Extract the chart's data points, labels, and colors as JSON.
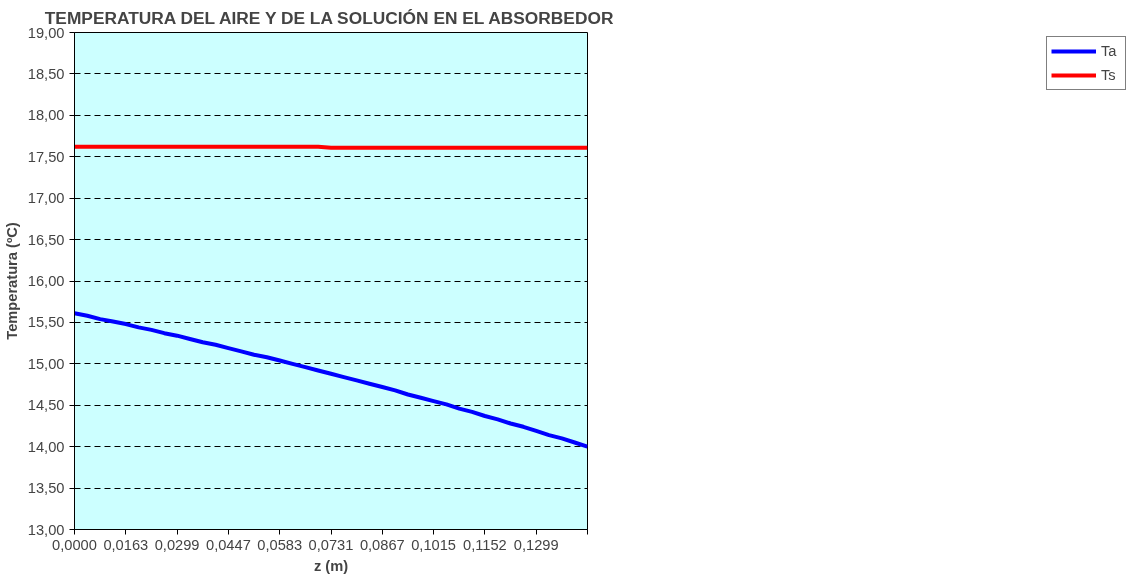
{
  "chart_data": {
    "type": "line",
    "title": "TEMPERATURA DEL AIRE Y DE LA SOLUCIÓN EN EL ABSORBEDOR",
    "xlabel": "z (m)",
    "ylabel": "Temperatura (ºC)",
    "categories": [
      "0,0000",
      null,
      null,
      null,
      "0,0163",
      null,
      null,
      null,
      "0,0299",
      null,
      null,
      null,
      "0,0447",
      null,
      null,
      null,
      "0,0583",
      null,
      null,
      null,
      "0,0731",
      null,
      null,
      null,
      "0,0867",
      null,
      null,
      null,
      "0,1015",
      null,
      null,
      null,
      "0,1152",
      null,
      null,
      null,
      "0,1299",
      null,
      null,
      null,
      null
    ],
    "series": [
      {
        "name": "Ta",
        "color": "#0000ff",
        "values": [
          15.61,
          15.58,
          15.54,
          15.51,
          15.48,
          15.44,
          15.41,
          15.37,
          15.34,
          15.3,
          15.26,
          15.23,
          15.19,
          15.15,
          15.11,
          15.08,
          15.04,
          15.0,
          14.96,
          14.92,
          14.88,
          14.84,
          14.8,
          14.76,
          14.72,
          14.68,
          14.63,
          14.59,
          14.55,
          14.51,
          14.46,
          14.42,
          14.37,
          14.33,
          14.28,
          14.24,
          14.19,
          14.14,
          14.1,
          14.05,
          14.0
        ]
      },
      {
        "name": "Ts",
        "color": "#ff0000",
        "values": [
          17.62,
          17.62,
          17.62,
          17.62,
          17.62,
          17.62,
          17.62,
          17.62,
          17.62,
          17.62,
          17.62,
          17.62,
          17.62,
          17.62,
          17.62,
          17.62,
          17.62,
          17.62,
          17.62,
          17.62,
          17.61,
          17.61,
          17.61,
          17.61,
          17.61,
          17.61,
          17.61,
          17.61,
          17.61,
          17.61,
          17.61,
          17.61,
          17.61,
          17.61,
          17.61,
          17.61,
          17.61,
          17.61,
          17.61,
          17.61,
          17.61
        ]
      }
    ],
    "ylim": [
      13,
      19
    ],
    "yticks": [
      {
        "value": 13,
        "label": "13,00"
      },
      {
        "value": 13.5,
        "label": "13,50"
      },
      {
        "value": 14,
        "label": "14,00"
      },
      {
        "value": 14.5,
        "label": "14,50"
      },
      {
        "value": 15,
        "label": "15,00"
      },
      {
        "value": 15.5,
        "label": "15,50"
      },
      {
        "value": 16,
        "label": "16,00"
      },
      {
        "value": 16.5,
        "label": "16,50"
      },
      {
        "value": 17,
        "label": "17,00"
      },
      {
        "value": 17.5,
        "label": "17,50"
      },
      {
        "value": 18,
        "label": "18,00"
      },
      {
        "value": 18.5,
        "label": "18,50"
      },
      {
        "value": 19,
        "label": "19,00"
      }
    ],
    "grid": "y",
    "legend": "right",
    "marker": "none",
    "line_style": "solid"
  }
}
